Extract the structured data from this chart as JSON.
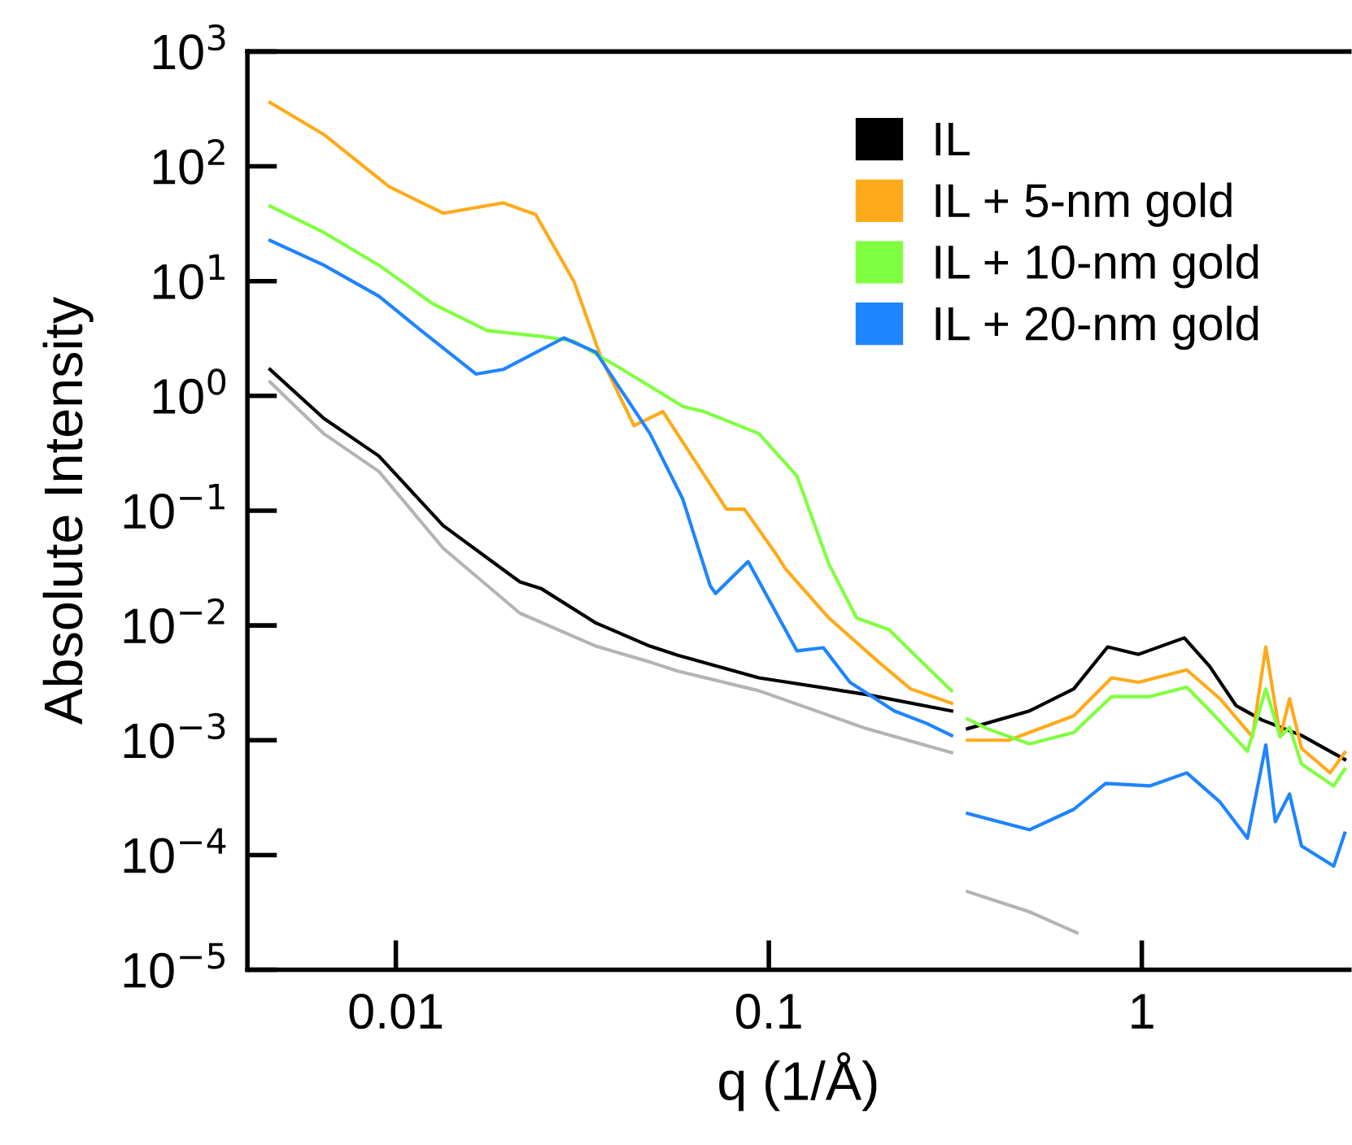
{
  "chart_data": {
    "type": "line",
    "xlabel": "q (1/Å)",
    "ylabel": "Absolute Intensity",
    "log": "xy",
    "grid": false,
    "legend": "top right",
    "line_style": "solid",
    "marker": "none",
    "xlim": [
      0.004,
      3.6
    ],
    "ylim": [
      1e-05,
      1000
    ],
    "xticks": [
      0.01,
      0.1,
      1
    ],
    "yticks": [
      {
        "value": 1e-05,
        "label": "10$^{−5}$"
      },
      {
        "value": 0.0001,
        "label": "10$^{−4}$"
      },
      {
        "value": 0.001,
        "label": "10$^{−3}$"
      },
      {
        "value": 0.01,
        "label": "10$^{−2}$"
      },
      {
        "value": 0.1,
        "label": "10$^{−1}$"
      },
      {
        "value": 1,
        "label": "10$^{0}$"
      },
      {
        "value": 10,
        "label": "10$^{1}$"
      },
      {
        "value": 100,
        "label": "10$^{2}$"
      },
      {
        "value": 1000,
        "label": "10$^{3}$"
      }
    ],
    "series": [
      {
        "color": "#b4b4b4",
        "x": [
          0.0046,
          0.0064,
          0.009,
          0.0134,
          0.0215,
          0.0344,
          0.048,
          0.057,
          0.094,
          0.183,
          0.309,
          0.32,
          0.341,
          0.5,
          0.67
        ],
        "values": [
          1.32,
          0.47,
          0.22,
          0.047,
          0.0128,
          0.0066,
          0.0048,
          0.004,
          0.0027,
          0.00126,
          0.00078,
          null,
          4.8e-05,
          3.2e-05,
          2.1e-05
        ]
      },
      {
        "name": "IL",
        "color": "#000000",
        "x": [
          0.0046,
          0.0064,
          0.009,
          0.0134,
          0.0215,
          0.0245,
          0.0344,
          0.048,
          0.057,
          0.094,
          0.183,
          0.309,
          0.32,
          0.341,
          0.5,
          0.657,
          0.81,
          0.98,
          1.3,
          1.52,
          1.79,
          2.1,
          2.68,
          3.5
        ],
        "values": [
          1.7,
          0.64,
          0.3,
          0.074,
          0.024,
          0.021,
          0.0105,
          0.0066,
          0.0055,
          0.0035,
          0.0025,
          0.0018,
          null,
          0.00126,
          0.0018,
          0.0028,
          0.0065,
          0.0056,
          0.0078,
          0.0044,
          0.002,
          0.0015,
          0.0011,
          0.00068
        ]
      },
      {
        "name": "IL + 5-nm gold",
        "color": "#ffaa1a",
        "x": [
          0.0046,
          0.0064,
          0.0096,
          0.0134,
          0.0194,
          0.0237,
          0.03,
          0.0355,
          0.0435,
          0.052,
          0.065,
          0.077,
          0.086,
          0.104,
          0.111,
          0.145,
          0.197,
          0.24,
          0.309,
          0.32,
          0.341,
          0.44,
          0.657,
          0.83,
          0.98,
          1.32,
          1.62,
          1.98,
          2.15,
          2.35,
          2.49,
          2.68,
          3.2,
          3.5
        ],
        "values": [
          360,
          190,
          66.5,
          39,
          48,
          38,
          10,
          2.15,
          0.55,
          0.73,
          0.24,
          0.103,
          0.103,
          0.043,
          0.031,
          0.0116,
          0.0048,
          0.0028,
          0.0021,
          null,
          0.001,
          0.001,
          0.00163,
          0.0035,
          0.0032,
          0.0041,
          0.0023,
          0.00107,
          0.0065,
          0.00107,
          0.0023,
          0.00085,
          0.00052,
          0.00078
        ]
      },
      {
        "name": "IL + 10-nm gold",
        "color": "#80ff40",
        "x": [
          0.0046,
          0.0064,
          0.009,
          0.0126,
          0.0176,
          0.0245,
          0.03,
          0.0405,
          0.0588,
          0.067,
          0.094,
          0.119,
          0.145,
          0.172,
          0.21,
          0.24,
          0.309,
          0.32,
          0.341,
          0.385,
          0.5,
          0.657,
          0.83,
          1.05,
          1.32,
          1.57,
          1.92,
          2.15,
          2.35,
          2.49,
          2.68,
          3.27,
          3.5
        ],
        "values": [
          45,
          26.6,
          13.8,
          6.3,
          3.7,
          3.3,
          3.0,
          1.7,
          0.81,
          0.73,
          0.47,
          0.2,
          0.034,
          0.0116,
          0.0092,
          0.006,
          0.0027,
          null,
          0.00153,
          0.00126,
          0.00093,
          0.00117,
          0.0024,
          0.0024,
          0.0029,
          0.00163,
          0.0008,
          0.0028,
          0.00107,
          0.0013,
          0.00062,
          0.0004,
          0.00056
        ]
      },
      {
        "name": "IL + 20-nm gold",
        "color": "#1e84ff",
        "x": [
          0.0046,
          0.0064,
          0.009,
          0.0117,
          0.0164,
          0.0194,
          0.0282,
          0.0344,
          0.048,
          0.0588,
          0.0697,
          0.072,
          0.088,
          0.119,
          0.14,
          0.165,
          0.217,
          0.265,
          0.309,
          0.32,
          0.341,
          0.5,
          0.657,
          0.8,
          1.05,
          1.32,
          1.62,
          1.92,
          2.15,
          2.28,
          2.49,
          2.68,
          3.27,
          3.5
        ],
        "values": [
          22.6,
          13.8,
          7.4,
          3.7,
          1.55,
          1.7,
          3.2,
          2.4,
          0.47,
          0.126,
          0.022,
          0.019,
          0.036,
          0.006,
          0.0064,
          0.0032,
          0.0018,
          0.0014,
          0.0011,
          null,
          0.00023,
          0.000166,
          0.00025,
          0.00042,
          0.0004,
          0.00052,
          0.00029,
          0.00014,
          0.00091,
          0.000195,
          0.00034,
          0.00012,
          8e-05,
          0.000155
        ]
      }
    ]
  }
}
